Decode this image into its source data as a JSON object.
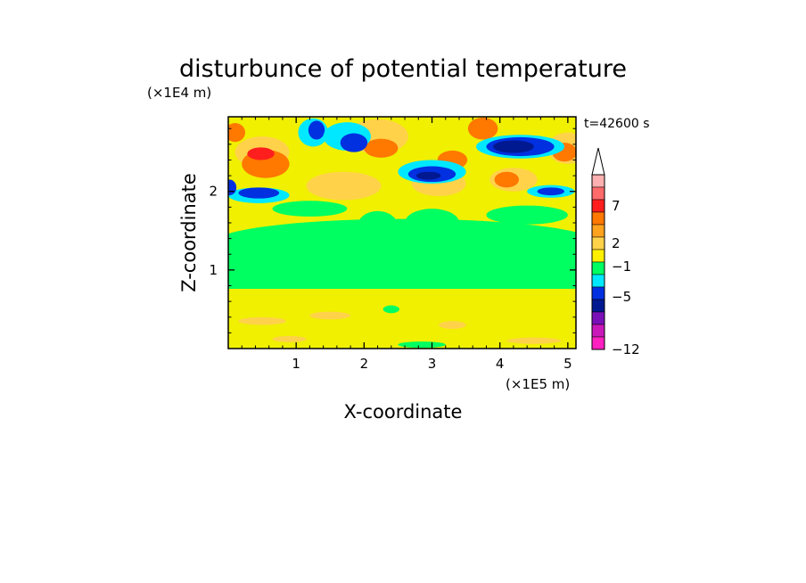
{
  "chart_data": {
    "type": "heatmap",
    "title": "disturbunce of potential temperature",
    "time_label": "t=42600 s",
    "xlabel": "X-coordinate",
    "ylabel": "Z-coordinate",
    "x_scale_label": "(×1E5 m)",
    "y_scale_label": "(×1E4 m)",
    "xlim": [
      0,
      5.12
    ],
    "ylim": [
      0,
      2.95
    ],
    "x_ticks": [
      "1",
      "2",
      "3",
      "4",
      "5"
    ],
    "y_ticks": [
      "1",
      "2"
    ],
    "colorbar": {
      "labels": [
        "7",
        "2",
        "−1",
        "−5",
        "−12"
      ],
      "colors": [
        "#ffb0b0",
        "#ff6a6a",
        "#ff1e1e",
        "#ff7800",
        "#ffa21e",
        "#ffd24a",
        "#fff000",
        "#00ff60",
        "#00e8ff",
        "#0030e0",
        "#001890",
        "#7a10b8",
        "#c818b8",
        "#ff20c0"
      ]
    },
    "level_colors": {
      "pos_high": "#ff1e1e",
      "pos_mid": "#ff7800",
      "pos_low": "#ffd24a",
      "near_zero": "#f0f000",
      "neg_low": "#00ff60",
      "neg_mid": "#00e8ff",
      "neg_high": "#0030e0",
      "neg_max": "#001890"
    }
  }
}
